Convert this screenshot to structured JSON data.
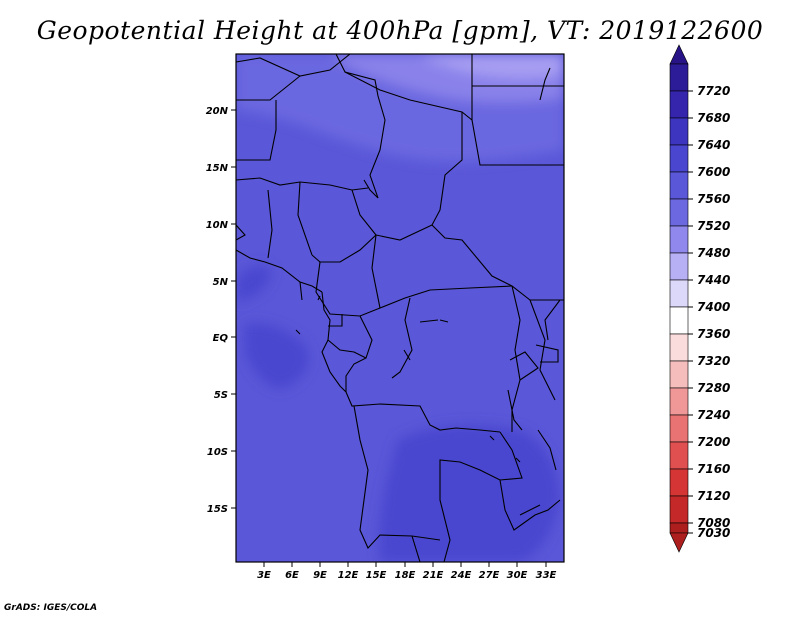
{
  "title": "Geopotential Height at 400hPa [gpm], VT: 2019122600",
  "credit": "GrADS: IGES/COLA",
  "map": {
    "lat_labels": [
      "20N",
      "15N",
      "10N",
      "5N",
      "EQ",
      "5S",
      "10S",
      "15S"
    ],
    "lon_labels": [
      "3E",
      "6E",
      "9E",
      "12E",
      "15E",
      "18E",
      "21E",
      "24E",
      "27E",
      "30E",
      "33E"
    ]
  },
  "colorbar": {
    "levels": [
      "7720",
      "7680",
      "7640",
      "7600",
      "7560",
      "7520",
      "7480",
      "7440",
      "7400",
      "7360",
      "7320",
      "7280",
      "7240",
      "7200",
      "7160",
      "7120",
      "7080",
      "7030"
    ],
    "colors": [
      "#281487",
      "#2d1c98",
      "#3525ad",
      "#3d35c0",
      "#4a46cf",
      "#5a57d8",
      "#6b68e0",
      "#9088ec",
      "#b8b0f4",
      "#dcd8fa",
      "#ffffff",
      "#fbdcdc",
      "#f6bdbd",
      "#f09898",
      "#e97272",
      "#e05050",
      "#d53535",
      "#c42828",
      "#ad1e1e"
    ]
  }
}
